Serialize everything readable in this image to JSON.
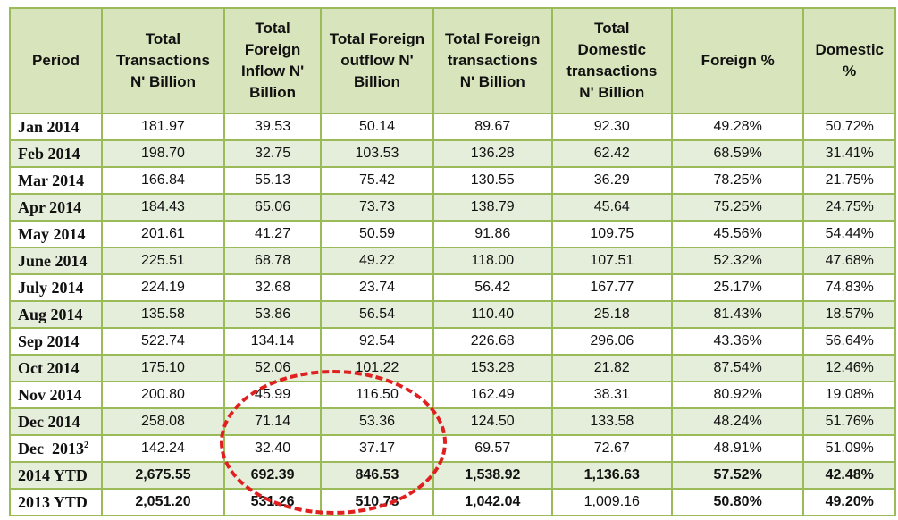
{
  "headers": [
    "Period",
    "Total Transactions N' Billion",
    "Total Foreign Inflow N' Billion",
    "Total Foreign outflow N' Billion",
    "Total Foreign transactions N' Billion",
    "Total Domestic transactions N' Billion",
    "Foreign %",
    "Domestic %"
  ],
  "rows": [
    {
      "period": "Jan 2014",
      "values": [
        "181.97",
        "39.53",
        "50.14",
        "89.67",
        "92.30",
        "49.28%",
        "50.72%"
      ]
    },
    {
      "period": "Feb 2014",
      "values": [
        "198.70",
        "32.75",
        "103.53",
        "136.28",
        "62.42",
        "68.59%",
        "31.41%"
      ]
    },
    {
      "period": "Mar 2014",
      "values": [
        "166.84",
        "55.13",
        "75.42",
        "130.55",
        "36.29",
        "78.25%",
        "21.75%"
      ]
    },
    {
      "period": "Apr 2014",
      "values": [
        "184.43",
        "65.06",
        "73.73",
        "138.79",
        "45.64",
        "75.25%",
        "24.75%"
      ]
    },
    {
      "period": "May 2014",
      "values": [
        "201.61",
        "41.27",
        "50.59",
        "91.86",
        "109.75",
        "45.56%",
        "54.44%"
      ]
    },
    {
      "period": "June 2014",
      "values": [
        "225.51",
        "68.78",
        "49.22",
        "118.00",
        "107.51",
        "52.32%",
        "47.68%"
      ]
    },
    {
      "period": "July 2014",
      "values": [
        "224.19",
        "32.68",
        "23.74",
        "56.42",
        "167.77",
        "25.17%",
        "74.83%"
      ]
    },
    {
      "period": "Aug 2014",
      "values": [
        "135.58",
        "53.86",
        "56.54",
        "110.40",
        "25.18",
        "81.43%",
        "18.57%"
      ]
    },
    {
      "period": "Sep 2014",
      "values": [
        "522.74",
        "134.14",
        "92.54",
        "226.68",
        "296.06",
        "43.36%",
        "56.64%"
      ]
    },
    {
      "period": "Oct 2014",
      "values": [
        "175.10",
        "52.06",
        "101.22",
        "153.28",
        "21.82",
        "87.54%",
        "12.46%"
      ]
    },
    {
      "period": "Nov 2014",
      "values": [
        "200.80",
        "45.99",
        "116.50",
        "162.49",
        "38.31",
        "80.92%",
        "19.08%"
      ]
    },
    {
      "period": "Dec 2014",
      "values": [
        "258.08",
        "71.14",
        "53.36",
        "124.50",
        "133.58",
        "48.24%",
        "51.76%"
      ]
    },
    {
      "period": "Dec  2013",
      "footnote": "2",
      "values": [
        "142.24",
        "32.40",
        "37.17",
        "69.57",
        "72.67",
        "48.91%",
        "51.09%"
      ]
    },
    {
      "period": "2014 YTD",
      "values": [
        "2,675.55",
        "692.39",
        "846.53",
        "1,538.92",
        "1,136.63",
        "57.52%",
        "42.48%"
      ]
    },
    {
      "period": "2013 YTD",
      "values": [
        "2,051.20",
        "531.26",
        "510.78",
        "1,042.04",
        "1,009.16",
        "50.80%",
        "49.20%"
      ]
    }
  ]
}
